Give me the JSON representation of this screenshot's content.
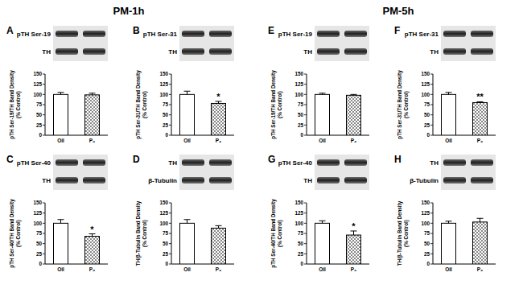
{
  "headers": [
    "PM-1h",
    "PM-5h"
  ],
  "chart_data": [
    {
      "type": "bar",
      "panel": "A",
      "blot_labels": [
        "pTH Ser-19",
        "TH"
      ],
      "y_label": "pTH Ser-19/TH Band Density (% Control)",
      "categories": [
        "Oil",
        "P₄"
      ],
      "values": [
        100,
        99
      ],
      "errors": [
        5,
        4
      ],
      "colors": [
        "#ffffff",
        "#888888"
      ],
      "ylim": [
        0,
        150
      ],
      "yticks": [
        0,
        25,
        50,
        75,
        100,
        125,
        150
      ]
    },
    {
      "type": "bar",
      "panel": "B",
      "blot_labels": [
        "pTH Ser-31",
        "TH"
      ],
      "y_label": "pTH Ser-31/TH Band Density (% Control)",
      "categories": [
        "Oil",
        "P₄"
      ],
      "values": [
        100,
        78
      ],
      "errors": [
        8,
        5
      ],
      "significance": [
        null,
        "*"
      ],
      "colors": [
        "#ffffff",
        "#888888"
      ],
      "ylim": [
        0,
        150
      ],
      "yticks": [
        0,
        25,
        50,
        75,
        100,
        125,
        150
      ]
    },
    {
      "type": "bar",
      "panel": "C",
      "blot_labels": [
        "pTH Ser-40",
        "TH"
      ],
      "y_label": "pTH Ser-40/TH Band Density (% Control)",
      "categories": [
        "Oil",
        "P₄"
      ],
      "values": [
        100,
        68
      ],
      "errors": [
        9,
        6
      ],
      "significance": [
        null,
        "*"
      ],
      "colors": [
        "#ffffff",
        "#888888"
      ],
      "ylim": [
        0,
        150
      ],
      "yticks": [
        0,
        25,
        50,
        75,
        100,
        125,
        150
      ]
    },
    {
      "type": "bar",
      "panel": "D",
      "blot_labels": [
        "TH",
        "β-Tubulin"
      ],
      "y_label": "TH/β-Tubulin Band Density (% Control)",
      "categories": [
        "Oil",
        "P₄"
      ],
      "values": [
        100,
        88
      ],
      "errors": [
        9,
        6
      ],
      "colors": [
        "#ffffff",
        "#888888"
      ],
      "ylim": [
        0,
        150
      ],
      "yticks": [
        0,
        25,
        50,
        75,
        100,
        125,
        150
      ]
    },
    {
      "type": "bar",
      "panel": "E",
      "blot_labels": [
        "pTH Ser-19",
        "TH"
      ],
      "y_label": "pTH Ser-19/TH Band Density (% Control)",
      "categories": [
        "Oil",
        "P₄"
      ],
      "values": [
        100,
        98
      ],
      "errors": [
        3,
        2
      ],
      "colors": [
        "#ffffff",
        "#888888"
      ],
      "ylim": [
        0,
        150
      ],
      "yticks": [
        0,
        25,
        50,
        75,
        100,
        125,
        150
      ]
    },
    {
      "type": "bar",
      "panel": "F",
      "blot_labels": [
        "pTH Ser-31",
        "TH"
      ],
      "y_label": "pTH Ser-31/TH Band Density (% Control)",
      "categories": [
        "Oil",
        "P₄"
      ],
      "values": [
        100,
        80
      ],
      "errors": [
        5,
        2
      ],
      "significance": [
        null,
        "**"
      ],
      "colors": [
        "#ffffff",
        "#888888"
      ],
      "ylim": [
        0,
        150
      ],
      "yticks": [
        0,
        25,
        50,
        75,
        100,
        125,
        150
      ]
    },
    {
      "type": "bar",
      "panel": "G",
      "blot_labels": [
        "pTH Ser-40",
        "TH"
      ],
      "y_label": "pTH Ser-40/TH Band Density (% Control)",
      "categories": [
        "Oil",
        "P₄"
      ],
      "values": [
        100,
        71
      ],
      "errors": [
        6,
        10
      ],
      "significance": [
        null,
        "*"
      ],
      "colors": [
        "#ffffff",
        "#888888"
      ],
      "ylim": [
        0,
        150
      ],
      "yticks": [
        0,
        25,
        50,
        75,
        100,
        125,
        150
      ]
    },
    {
      "type": "bar",
      "panel": "H",
      "blot_labels": [
        "TH",
        "β-Tubulin"
      ],
      "y_label": "TH/β-Tubulin Band Density (% Control)",
      "categories": [
        "Oil",
        "P₄"
      ],
      "values": [
        100,
        103
      ],
      "errors": [
        5,
        9
      ],
      "colors": [
        "#ffffff",
        "#888888"
      ],
      "ylim": [
        0,
        150
      ],
      "yticks": [
        0,
        25,
        50,
        75,
        100,
        125,
        150
      ]
    }
  ]
}
